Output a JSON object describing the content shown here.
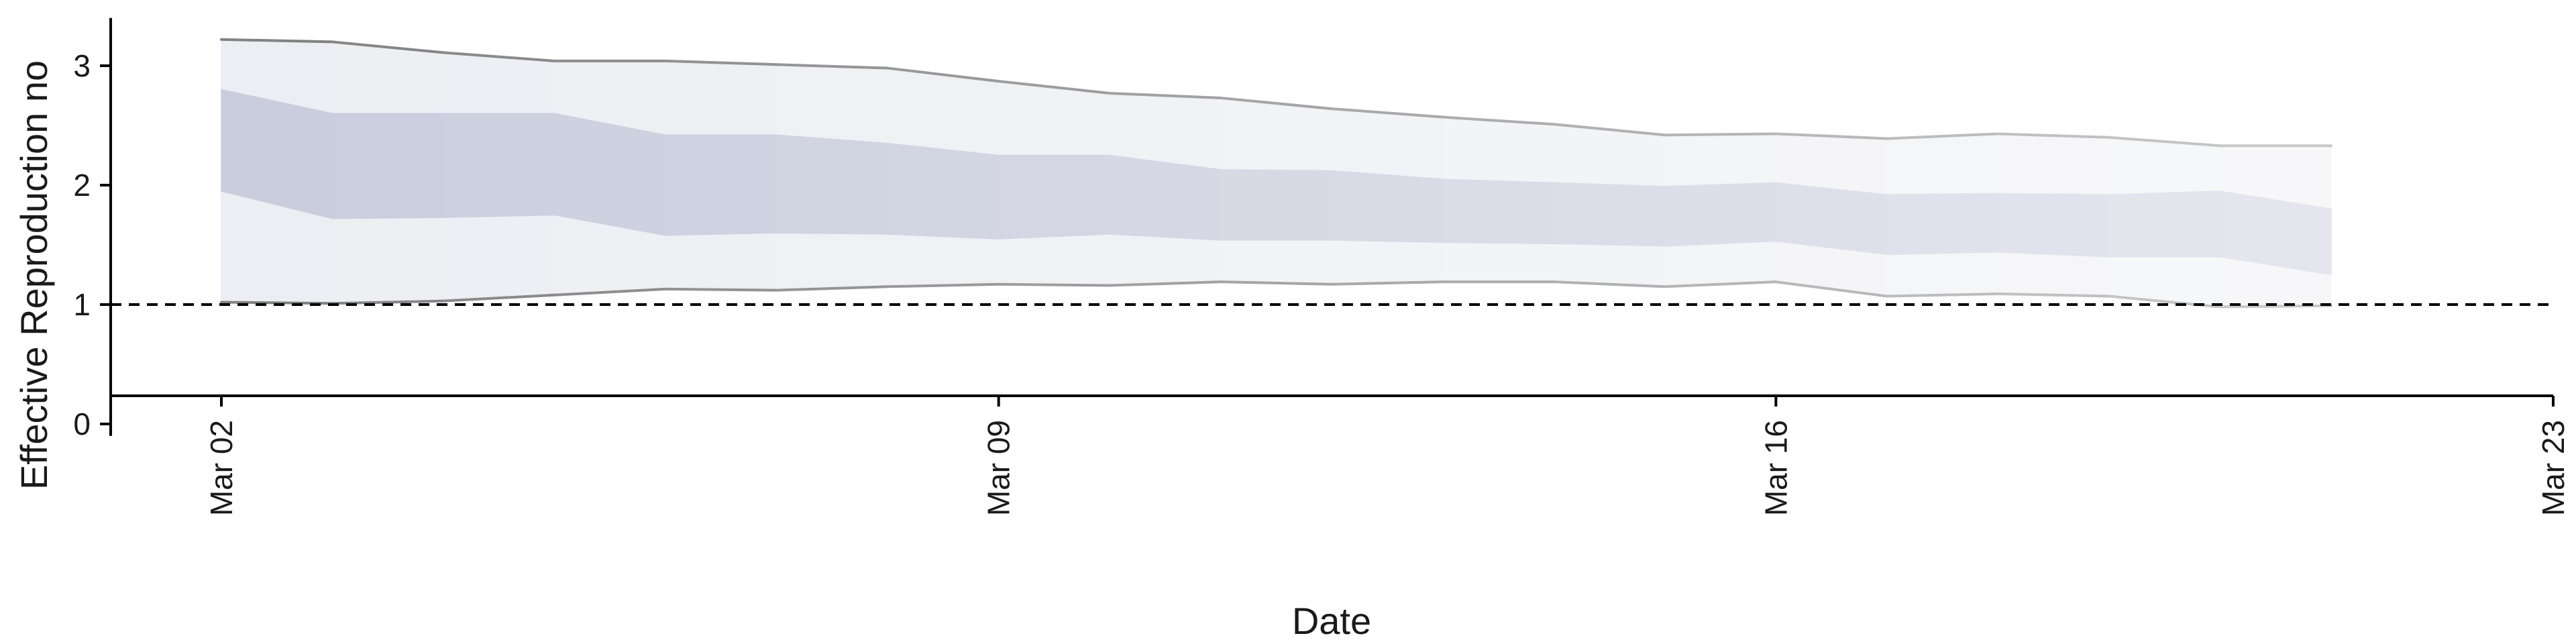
{
  "chart_data": {
    "type": "area",
    "title": "",
    "xlabel": "Date",
    "ylabel": "Effective Reproduction no",
    "x": [
      "2020-03-02",
      "2020-03-03",
      "2020-03-04",
      "2020-03-05",
      "2020-03-06",
      "2020-03-07",
      "2020-03-08",
      "2020-03-09",
      "2020-03-10",
      "2020-03-11",
      "2020-03-12",
      "2020-03-13",
      "2020-03-14",
      "2020-03-15",
      "2020-03-16",
      "2020-03-17",
      "2020-03-18",
      "2020-03-19",
      "2020-03-20",
      "2020-03-21"
    ],
    "x_ticks": [
      "Mar 02",
      "Mar 09",
      "Mar 16",
      "Mar 23"
    ],
    "y_ticks": [
      "0",
      "1",
      "2",
      "3"
    ],
    "xlim": [
      "2020-03-02",
      "2020-03-23"
    ],
    "ylim": [
      -0.1,
      3.4
    ],
    "reference_line": 1,
    "series": [
      {
        "band": "outer",
        "upper": [
          3.22,
          3.2,
          3.11,
          3.04,
          3.04,
          3.01,
          2.98,
          2.87,
          2.77,
          2.73,
          2.64,
          2.57,
          2.51,
          2.42,
          2.43,
          2.39,
          2.43,
          2.4,
          2.33,
          2.33
        ],
        "lower": [
          1.02,
          1.01,
          1.03,
          1.08,
          1.13,
          1.12,
          1.15,
          1.17,
          1.16,
          1.19,
          1.17,
          1.19,
          1.19,
          1.15,
          1.19,
          1.07,
          1.09,
          1.07,
          0.98,
          0.99
        ]
      },
      {
        "band": "inner",
        "upper": [
          2.8,
          2.6,
          2.6,
          2.6,
          2.42,
          2.42,
          2.35,
          2.25,
          2.25,
          2.13,
          2.12,
          2.05,
          2.02,
          1.99,
          2.02,
          1.92,
          1.93,
          1.92,
          1.95,
          1.8
        ],
        "lower": [
          1.95,
          1.72,
          1.73,
          1.75,
          1.58,
          1.6,
          1.59,
          1.55,
          1.59,
          1.54,
          1.54,
          1.52,
          1.51,
          1.49,
          1.53,
          1.42,
          1.44,
          1.4,
          1.4,
          1.25
        ]
      }
    ],
    "grid": false,
    "legend": "none",
    "colors": {
      "outer_band": "#eceef3",
      "inner_band": "#c9cddd",
      "outline": "#8a8a8a",
      "axis": "#000000"
    }
  }
}
